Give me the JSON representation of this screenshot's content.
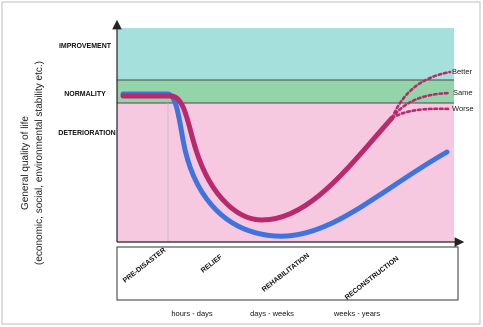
{
  "colors": {
    "improvement": "#a6e0dc",
    "normality": "#93d4a8",
    "deterioration": "#f7c9e0",
    "red_curve": "#b8296e",
    "blue_curve": "#3f73dd",
    "axis": "#222222",
    "outcome_dots": "#b8296e",
    "pre_disaster_label": "#aaaaaa"
  },
  "y_axis": {
    "line1": "General quality of life",
    "line2": "(economic, social, environmental stability etc.)"
  },
  "zones": [
    {
      "key": "improvement",
      "label": "IMPROVEMENT"
    },
    {
      "key": "normality",
      "label": "NORMALITY"
    },
    {
      "key": "deterioration",
      "label": "DETERIORATION"
    }
  ],
  "outcomes": [
    "Better",
    "Same",
    "Worse"
  ],
  "phases": [
    "PRE-DISASTER",
    "RELIEF",
    "REHABILITATION",
    "RECONSTRUCTION"
  ],
  "time_labels": [
    "hours - days",
    "days - weeks",
    "weeks - years"
  ]
}
